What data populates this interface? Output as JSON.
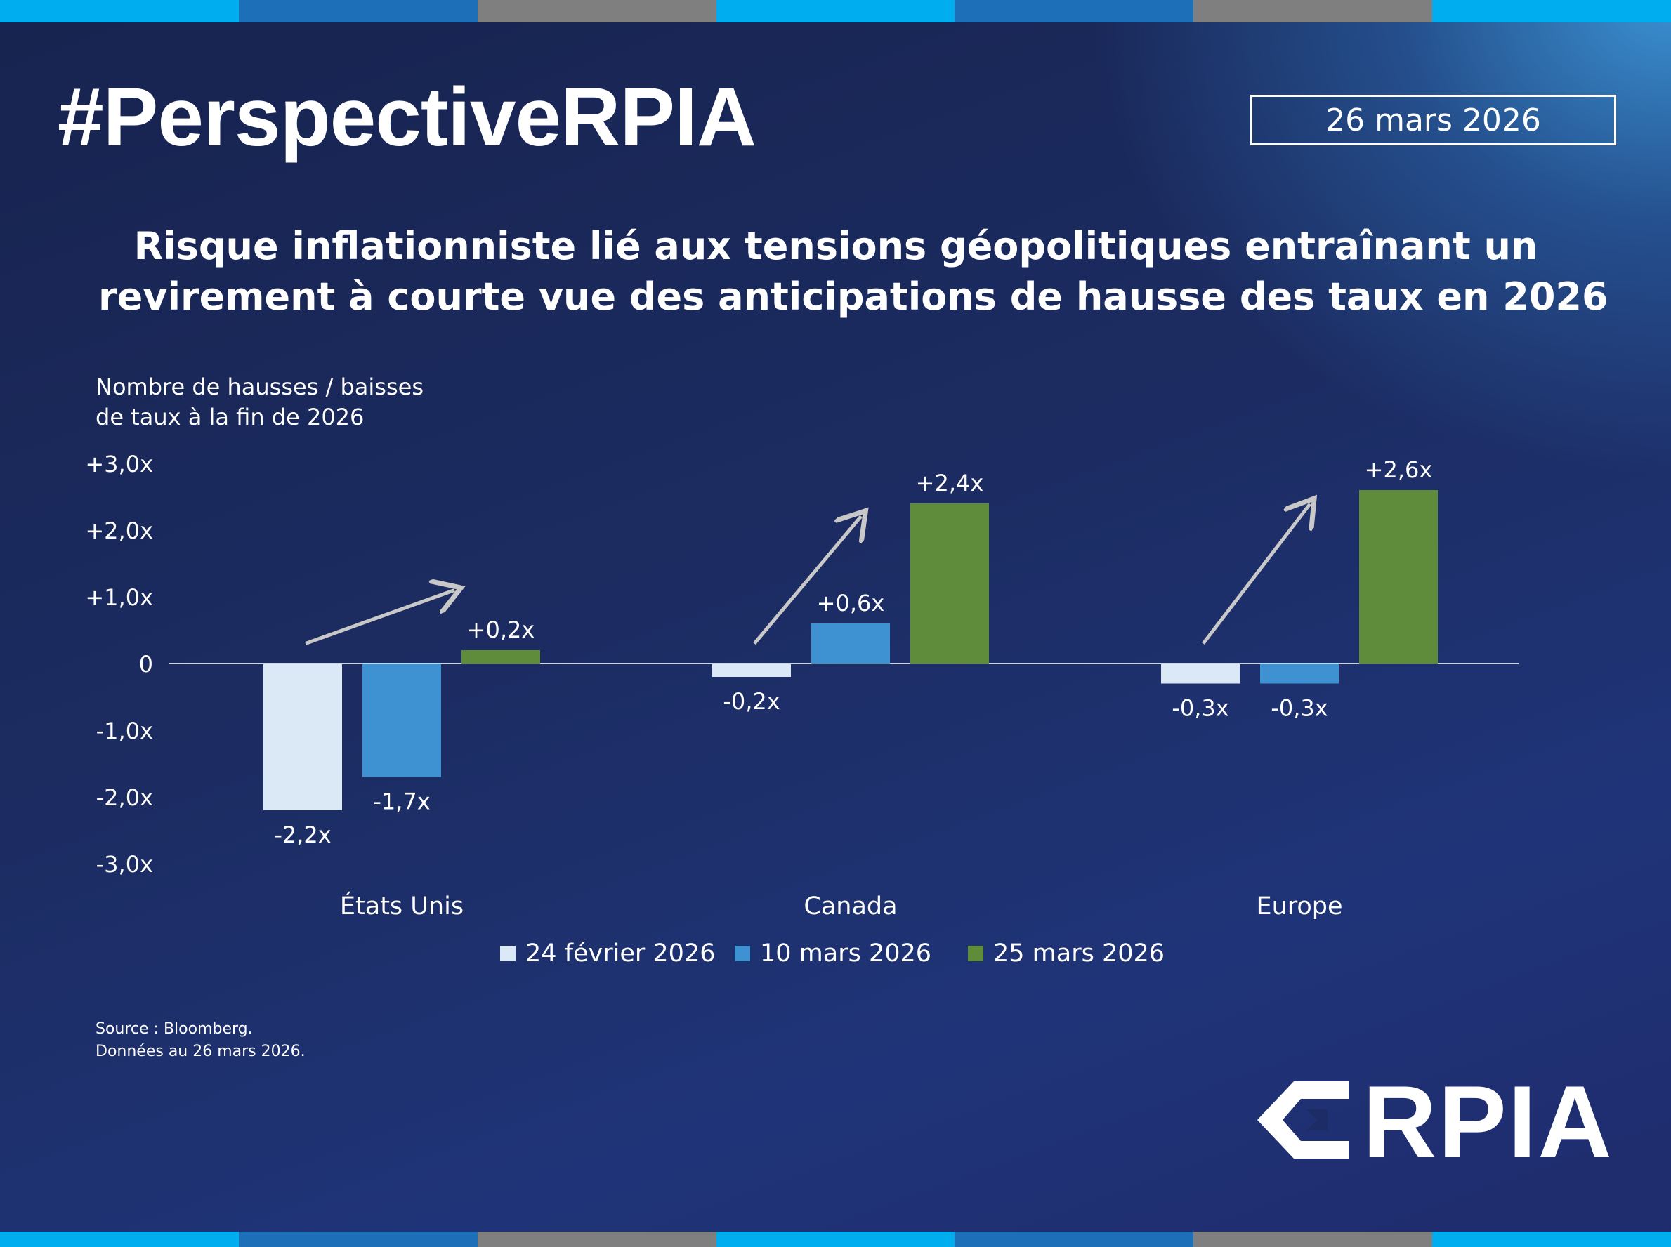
{
  "hashtag": "#PerspectiveRPIA",
  "date": "26 mars 2026",
  "title_lines": [
    "Risque inflationniste lié aux tensions géopolitiques entraînant un",
    "revirement à courte vue des anticipations de hausse des taux en 2026"
  ],
  "source_lines": [
    "Source : Bloomberg.",
    "Données au 26 mars 2026."
  ],
  "logo_text": "RPIA",
  "colors": {
    "series_1": "#dbe9f7",
    "series_2": "#3f92d2",
    "series_3": "#5e8c3a",
    "arrow": "#c8c8c8",
    "stripe": [
      "#00aeef",
      "#1d6fb8",
      "#7f7f7f",
      "#00aeef",
      "#1d6fb8",
      "#7f7f7f",
      "#00aeef"
    ]
  },
  "chart_data": {
    "type": "bar",
    "ylabel_lines": [
      "Nombre de hausses / baisses",
      "de taux à la fin de 2026"
    ],
    "ylim": [
      -3,
      3
    ],
    "yticks": [
      3,
      2,
      1,
      0,
      -1,
      -2,
      -3
    ],
    "ytick_labels": [
      "+3,0x",
      "+2,0x",
      "+1,0x",
      "0",
      "-1,0x",
      "-2,0x",
      "-3,0x"
    ],
    "categories": [
      "États Unis",
      "Canada",
      "Europe"
    ],
    "series": [
      {
        "name": "24 février 2026",
        "values": [
          -2.2,
          -0.2,
          -0.3
        ],
        "labels": [
          "-2,2x",
          "-0,2x",
          "-0,3x"
        ]
      },
      {
        "name": "10 mars 2026",
        "values": [
          -1.7,
          0.6,
          -0.3
        ],
        "labels": [
          "-1,7x",
          "+0,6x",
          "-0,3x"
        ]
      },
      {
        "name": "25 mars 2026",
        "values": [
          0.2,
          2.4,
          2.6
        ],
        "labels": [
          "+0,2x",
          "+2,4x",
          "+2,6x"
        ]
      }
    ],
    "legend_position": "bottom",
    "annotations": "upward trend arrow above each category"
  }
}
